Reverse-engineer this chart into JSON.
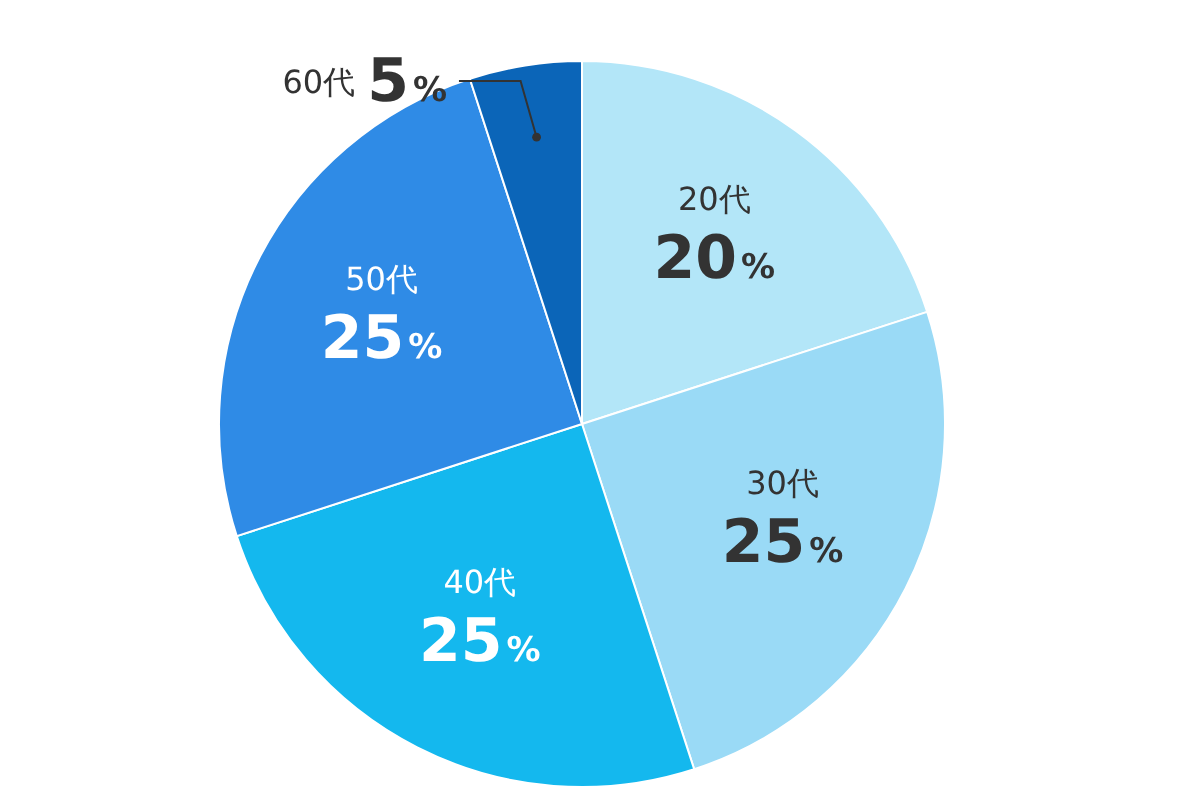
{
  "chart_data": {
    "type": "pie",
    "categories": [
      "20代",
      "30代",
      "40代",
      "50代",
      "60代"
    ],
    "values": [
      20,
      25,
      25,
      25,
      5
    ],
    "colors": [
      "#b3e6f8",
      "#9adaf6",
      "#14b8ee",
      "#2f8be6",
      "#0b65b8"
    ],
    "value_labels": [
      "20%",
      "25%",
      "25%",
      "25%",
      "5%"
    ],
    "legend": false
  }
}
